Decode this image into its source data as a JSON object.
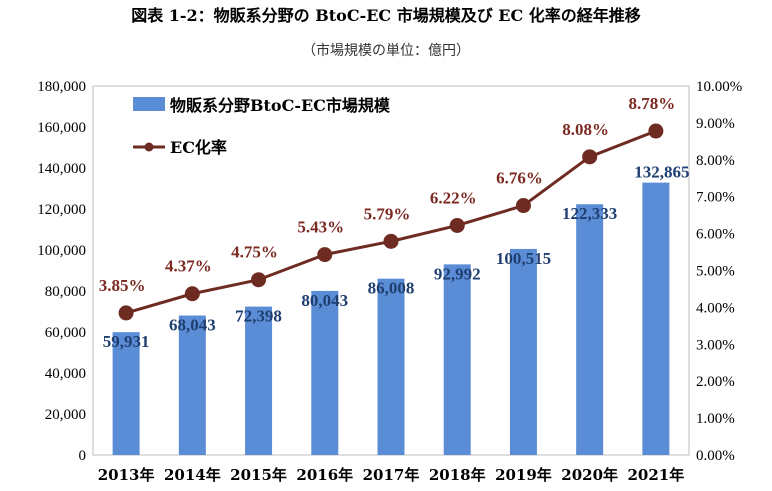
{
  "title": "図表 1-2：物販系分野の BtoC-EC 市場規模及び EC 化率の経年推移",
  "subtitle": "（市場規模の単位：億円）",
  "colors": {
    "bar": "#5B8DD6",
    "line": "#6E2B22",
    "bar_label": "#1F3F70",
    "rate_label": "#7B2A22"
  },
  "chart_data": {
    "type": "bar",
    "categories": [
      "2013年",
      "2014年",
      "2015年",
      "2016年",
      "2017年",
      "2018年",
      "2019年",
      "2020年",
      "2021年"
    ],
    "series": [
      {
        "name": "物販系分野BtoC-EC市場規模",
        "type": "bar",
        "axis": "left",
        "values": [
          59931,
          68043,
          72398,
          80043,
          86008,
          92992,
          100515,
          122333,
          132865
        ],
        "labels": [
          "59,931",
          "68,043",
          "72,398",
          "80,043",
          "86,008",
          "92,992",
          "100,515",
          "122,333",
          "132,865"
        ]
      },
      {
        "name": "EC化率",
        "type": "line",
        "axis": "right",
        "values": [
          3.85,
          4.37,
          4.75,
          5.43,
          5.79,
          6.22,
          6.76,
          8.08,
          8.78
        ],
        "labels": [
          "3.85%",
          "4.37%",
          "4.75%",
          "5.43%",
          "5.79%",
          "6.22%",
          "6.76%",
          "8.08%",
          "8.78%"
        ]
      }
    ],
    "ylim_left": [
      0,
      180000
    ],
    "ylim_right": [
      0,
      10
    ],
    "left_ticks": [
      "0",
      "20,000",
      "40,000",
      "60,000",
      "80,000",
      "100,000",
      "120,000",
      "140,000",
      "160,000",
      "180,000"
    ],
    "right_ticks": [
      "0.00%",
      "1.00%",
      "2.00%",
      "3.00%",
      "4.00%",
      "5.00%",
      "6.00%",
      "7.00%",
      "8.00%",
      "9.00%",
      "10.00%"
    ],
    "legend_position": "top-left",
    "grid": false
  }
}
